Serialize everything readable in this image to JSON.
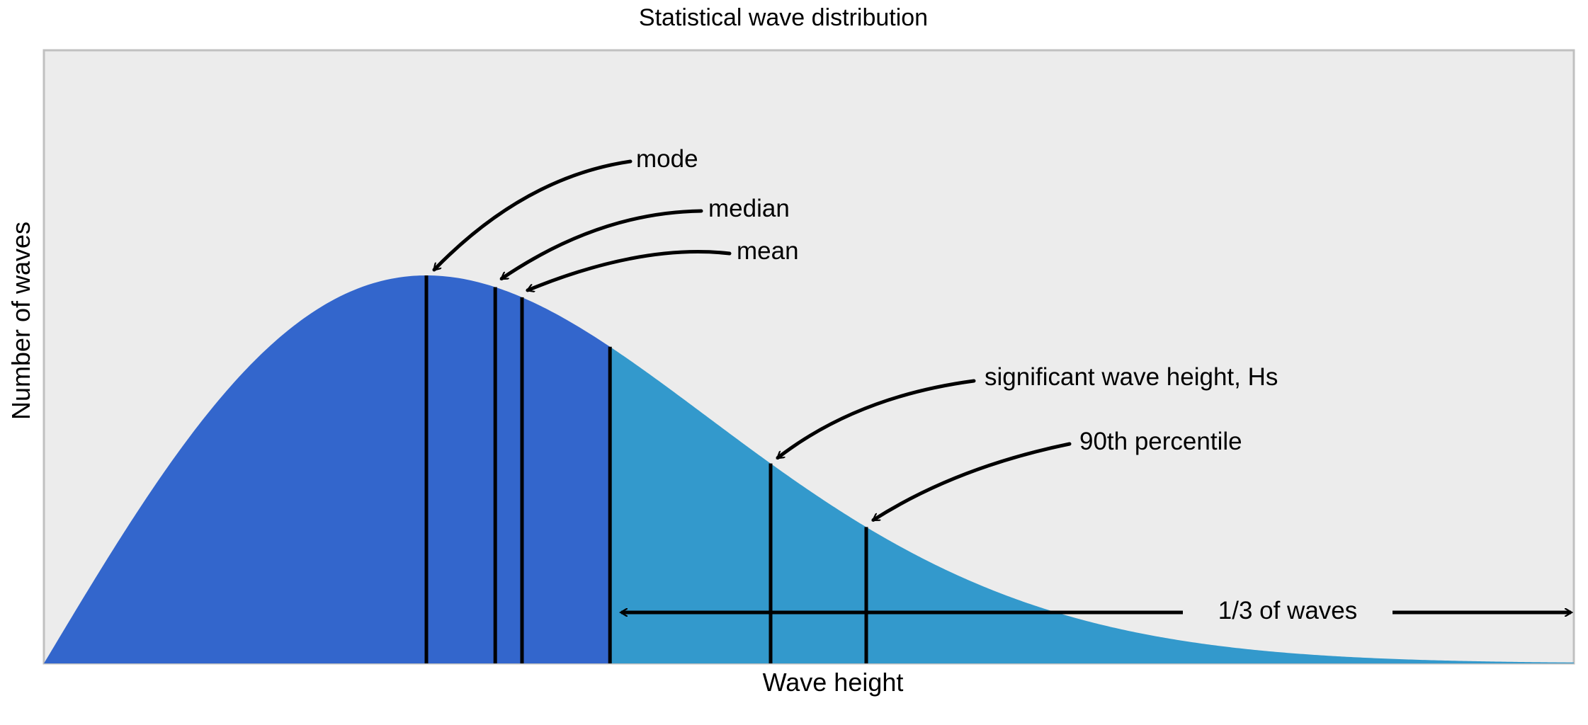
{
  "chart_data": {
    "type": "area",
    "title": "Statistical wave distribution",
    "xlabel": "Wave height",
    "ylabel": "Number of waves",
    "distribution": "rayleigh",
    "xlim": [
      0,
      4
    ],
    "ylim": [
      0,
      1
    ],
    "grid": false,
    "x_ticks_shown": false,
    "y_ticks_shown": false,
    "markers": [
      {
        "name": "mode",
        "x": 1.0
      },
      {
        "name": "median",
        "x": 1.18
      },
      {
        "name": "mean",
        "x": 1.25
      },
      {
        "name": "one_third_threshold",
        "x": 1.48
      },
      {
        "name": "significant wave height, Hs",
        "x": 1.9
      },
      {
        "name": "90th percentile",
        "x": 2.15
      }
    ],
    "annotations": {
      "mode": "mode",
      "median": "median",
      "mean": "mean",
      "hs": "significant wave height, Hs",
      "p90": "90th percentile",
      "third": "1/3 of waves"
    },
    "colors": {
      "background": "#ececec",
      "lower_fill": "#3366cc",
      "upper_fill": "#3399cc",
      "lines": "#000000",
      "frame": "#c0c0c0"
    }
  }
}
